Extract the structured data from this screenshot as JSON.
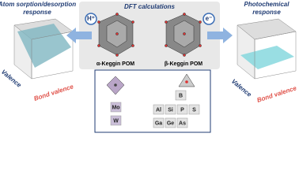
{
  "left_panel": {
    "title_line1": "Atom sorption/desorption",
    "title_line2": "response",
    "axis_y": "Valence",
    "axis_x": "Bond valence"
  },
  "center_panel": {
    "title": "DFT calculations",
    "left_arrow_label": "H⁺",
    "right_arrow_label": "e⁻",
    "structures": [
      "α-Keggin POM",
      "β-Keggin POM"
    ],
    "elements": {
      "addenda": [
        "Mo",
        "W"
      ],
      "heteroatoms": [
        [
          "B"
        ],
        [
          "Al",
          "Si",
          "P",
          "S"
        ],
        [
          "Ga",
          "Ge",
          "As"
        ]
      ]
    }
  },
  "right_panel": {
    "title_line1": "Photochemical",
    "title_line2": "response",
    "axis_y": "Valence",
    "axis_x": "Bond valence"
  }
}
